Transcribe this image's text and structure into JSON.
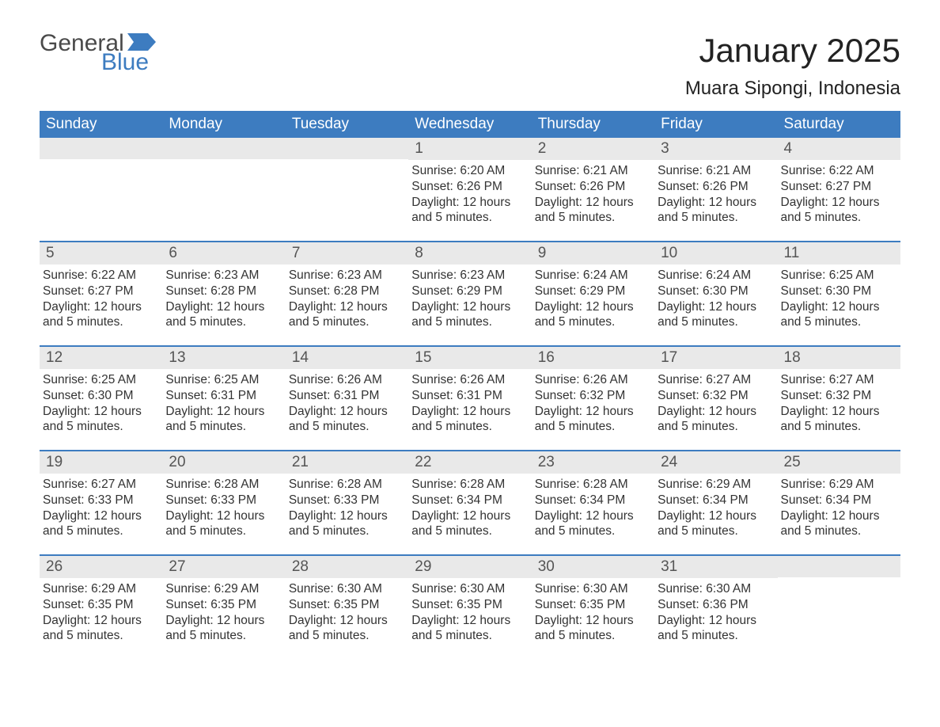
{
  "logo": {
    "text1": "General",
    "text2": "Blue"
  },
  "title": "January 2025",
  "location": "Muara Sipongi, Indonesia",
  "colors": {
    "header_bg": "#3d7cc0",
    "header_text": "#ffffff",
    "daynum_bg": "#e9e9e9",
    "daynum_text": "#555555",
    "body_text": "#333333",
    "rule": "#3d7cc0",
    "logo_gray": "#4a4a4a",
    "logo_blue": "#3d7cc0",
    "page_bg": "#ffffff"
  },
  "typography": {
    "title_fontsize": 42,
    "location_fontsize": 24,
    "header_fontsize": 19,
    "daynum_fontsize": 19,
    "body_fontsize": 15.5,
    "font_family": "Arial"
  },
  "dayNames": [
    "Sunday",
    "Monday",
    "Tuesday",
    "Wednesday",
    "Thursday",
    "Friday",
    "Saturday"
  ],
  "labels": {
    "sunrise": "Sunrise:",
    "sunset": "Sunset:",
    "daylight": "Daylight:"
  },
  "weeks": [
    [
      {
        "day": ""
      },
      {
        "day": ""
      },
      {
        "day": ""
      },
      {
        "day": "1",
        "sunrise": "6:20 AM",
        "sunset": "6:26 PM",
        "daylight": "12 hours and 5 minutes."
      },
      {
        "day": "2",
        "sunrise": "6:21 AM",
        "sunset": "6:26 PM",
        "daylight": "12 hours and 5 minutes."
      },
      {
        "day": "3",
        "sunrise": "6:21 AM",
        "sunset": "6:26 PM",
        "daylight": "12 hours and 5 minutes."
      },
      {
        "day": "4",
        "sunrise": "6:22 AM",
        "sunset": "6:27 PM",
        "daylight": "12 hours and 5 minutes."
      }
    ],
    [
      {
        "day": "5",
        "sunrise": "6:22 AM",
        "sunset": "6:27 PM",
        "daylight": "12 hours and 5 minutes."
      },
      {
        "day": "6",
        "sunrise": "6:23 AM",
        "sunset": "6:28 PM",
        "daylight": "12 hours and 5 minutes."
      },
      {
        "day": "7",
        "sunrise": "6:23 AM",
        "sunset": "6:28 PM",
        "daylight": "12 hours and 5 minutes."
      },
      {
        "day": "8",
        "sunrise": "6:23 AM",
        "sunset": "6:29 PM",
        "daylight": "12 hours and 5 minutes."
      },
      {
        "day": "9",
        "sunrise": "6:24 AM",
        "sunset": "6:29 PM",
        "daylight": "12 hours and 5 minutes."
      },
      {
        "day": "10",
        "sunrise": "6:24 AM",
        "sunset": "6:30 PM",
        "daylight": "12 hours and 5 minutes."
      },
      {
        "day": "11",
        "sunrise": "6:25 AM",
        "sunset": "6:30 PM",
        "daylight": "12 hours and 5 minutes."
      }
    ],
    [
      {
        "day": "12",
        "sunrise": "6:25 AM",
        "sunset": "6:30 PM",
        "daylight": "12 hours and 5 minutes."
      },
      {
        "day": "13",
        "sunrise": "6:25 AM",
        "sunset": "6:31 PM",
        "daylight": "12 hours and 5 minutes."
      },
      {
        "day": "14",
        "sunrise": "6:26 AM",
        "sunset": "6:31 PM",
        "daylight": "12 hours and 5 minutes."
      },
      {
        "day": "15",
        "sunrise": "6:26 AM",
        "sunset": "6:31 PM",
        "daylight": "12 hours and 5 minutes."
      },
      {
        "day": "16",
        "sunrise": "6:26 AM",
        "sunset": "6:32 PM",
        "daylight": "12 hours and 5 minutes."
      },
      {
        "day": "17",
        "sunrise": "6:27 AM",
        "sunset": "6:32 PM",
        "daylight": "12 hours and 5 minutes."
      },
      {
        "day": "18",
        "sunrise": "6:27 AM",
        "sunset": "6:32 PM",
        "daylight": "12 hours and 5 minutes."
      }
    ],
    [
      {
        "day": "19",
        "sunrise": "6:27 AM",
        "sunset": "6:33 PM",
        "daylight": "12 hours and 5 minutes."
      },
      {
        "day": "20",
        "sunrise": "6:28 AM",
        "sunset": "6:33 PM",
        "daylight": "12 hours and 5 minutes."
      },
      {
        "day": "21",
        "sunrise": "6:28 AM",
        "sunset": "6:33 PM",
        "daylight": "12 hours and 5 minutes."
      },
      {
        "day": "22",
        "sunrise": "6:28 AM",
        "sunset": "6:34 PM",
        "daylight": "12 hours and 5 minutes."
      },
      {
        "day": "23",
        "sunrise": "6:28 AM",
        "sunset": "6:34 PM",
        "daylight": "12 hours and 5 minutes."
      },
      {
        "day": "24",
        "sunrise": "6:29 AM",
        "sunset": "6:34 PM",
        "daylight": "12 hours and 5 minutes."
      },
      {
        "day": "25",
        "sunrise": "6:29 AM",
        "sunset": "6:34 PM",
        "daylight": "12 hours and 5 minutes."
      }
    ],
    [
      {
        "day": "26",
        "sunrise": "6:29 AM",
        "sunset": "6:35 PM",
        "daylight": "12 hours and 5 minutes."
      },
      {
        "day": "27",
        "sunrise": "6:29 AM",
        "sunset": "6:35 PM",
        "daylight": "12 hours and 5 minutes."
      },
      {
        "day": "28",
        "sunrise": "6:30 AM",
        "sunset": "6:35 PM",
        "daylight": "12 hours and 5 minutes."
      },
      {
        "day": "29",
        "sunrise": "6:30 AM",
        "sunset": "6:35 PM",
        "daylight": "12 hours and 5 minutes."
      },
      {
        "day": "30",
        "sunrise": "6:30 AM",
        "sunset": "6:35 PM",
        "daylight": "12 hours and 5 minutes."
      },
      {
        "day": "31",
        "sunrise": "6:30 AM",
        "sunset": "6:36 PM",
        "daylight": "12 hours and 5 minutes."
      },
      {
        "day": ""
      }
    ]
  ]
}
